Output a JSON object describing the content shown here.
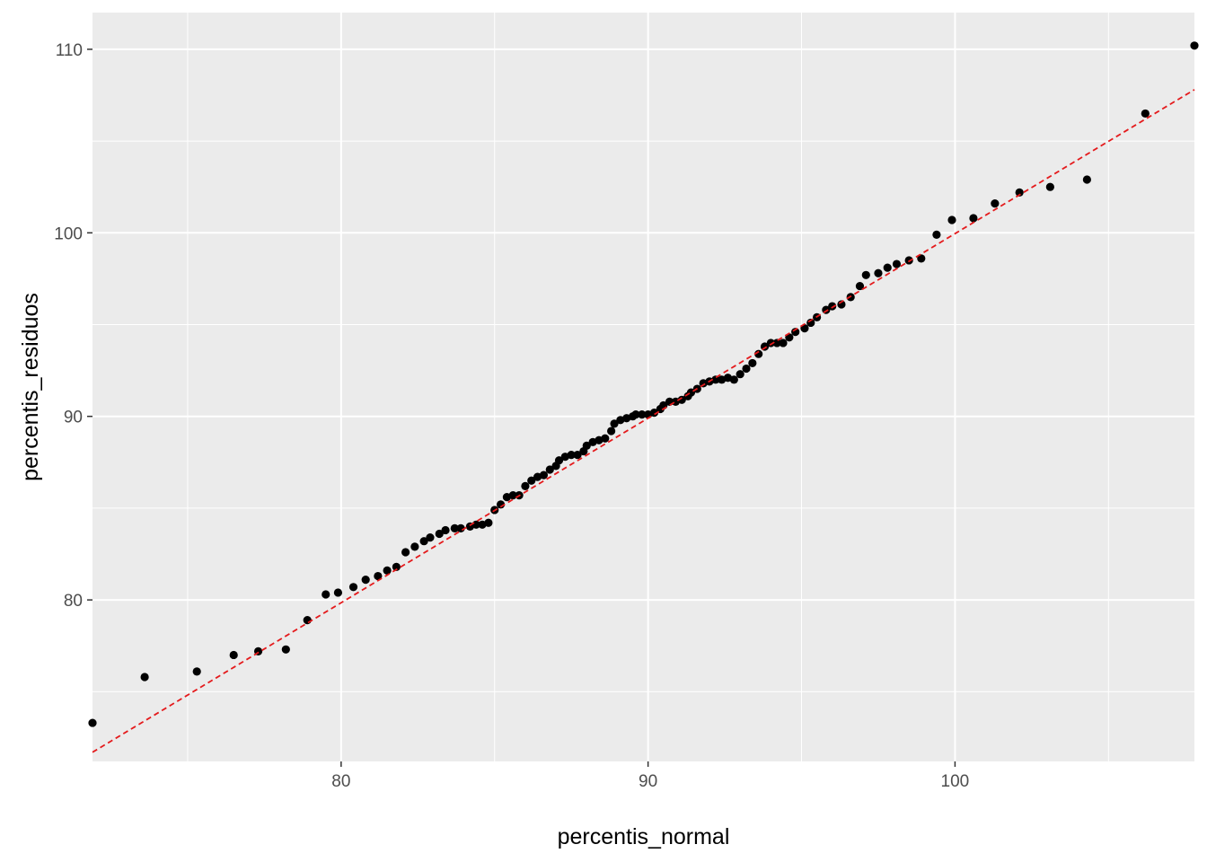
{
  "chart_data": {
    "type": "scatter",
    "title": "",
    "xlabel": "percentis_normal",
    "ylabel": "percentis_residuos",
    "xlim": [
      71.9,
      107.8
    ],
    "ylim": [
      71.2,
      112.0
    ],
    "x_ticks": [
      80,
      90,
      100
    ],
    "y_ticks": [
      80,
      90,
      100,
      110
    ],
    "x_minor": [
      75,
      85,
      95,
      105
    ],
    "y_minor": [
      75,
      85,
      95,
      105
    ],
    "grid": true,
    "legend": "none",
    "colors": {
      "panel": "#ebebeb",
      "grid": "#ffffff",
      "points": "#000000",
      "reference_line": "#e41a1c",
      "tick_text": "#4d4d4d",
      "tick_mark": "#333333"
    },
    "reference_line": {
      "style": "dashed",
      "points": [
        [
          71.9,
          71.7
        ],
        [
          107.8,
          107.8
        ]
      ]
    },
    "series": [
      {
        "points": [
          [
            71.9,
            73.3
          ],
          [
            73.6,
            75.8
          ],
          [
            75.3,
            76.1
          ],
          [
            76.5,
            77.0
          ],
          [
            77.3,
            77.2
          ],
          [
            78.2,
            77.3
          ],
          [
            78.9,
            78.9
          ],
          [
            79.5,
            80.3
          ],
          [
            79.9,
            80.4
          ],
          [
            80.4,
            80.7
          ],
          [
            80.8,
            81.1
          ],
          [
            81.2,
            81.3
          ],
          [
            81.5,
            81.6
          ],
          [
            81.8,
            81.8
          ],
          [
            82.1,
            82.6
          ],
          [
            82.4,
            82.9
          ],
          [
            82.7,
            83.2
          ],
          [
            82.9,
            83.4
          ],
          [
            83.2,
            83.6
          ],
          [
            83.4,
            83.8
          ],
          [
            83.7,
            83.9
          ],
          [
            83.9,
            83.9
          ],
          [
            84.2,
            84.0
          ],
          [
            84.4,
            84.1
          ],
          [
            84.6,
            84.1
          ],
          [
            84.8,
            84.2
          ],
          [
            85.0,
            84.9
          ],
          [
            85.2,
            85.2
          ],
          [
            85.4,
            85.6
          ],
          [
            85.6,
            85.7
          ],
          [
            85.8,
            85.7
          ],
          [
            86.0,
            86.2
          ],
          [
            86.2,
            86.5
          ],
          [
            86.4,
            86.7
          ],
          [
            86.6,
            86.8
          ],
          [
            86.8,
            87.1
          ],
          [
            87.0,
            87.3
          ],
          [
            87.1,
            87.6
          ],
          [
            87.3,
            87.8
          ],
          [
            87.5,
            87.9
          ],
          [
            87.7,
            87.9
          ],
          [
            87.9,
            88.1
          ],
          [
            88.0,
            88.4
          ],
          [
            88.2,
            88.6
          ],
          [
            88.4,
            88.7
          ],
          [
            88.6,
            88.8
          ],
          [
            88.8,
            89.2
          ],
          [
            88.9,
            89.6
          ],
          [
            89.1,
            89.8
          ],
          [
            89.3,
            89.9
          ],
          [
            89.5,
            90.0
          ],
          [
            89.6,
            90.1
          ],
          [
            89.8,
            90.1
          ],
          [
            90.0,
            90.1
          ],
          [
            90.2,
            90.2
          ],
          [
            90.4,
            90.4
          ],
          [
            90.5,
            90.6
          ],
          [
            90.7,
            90.8
          ],
          [
            90.9,
            90.8
          ],
          [
            91.1,
            90.9
          ],
          [
            91.3,
            91.1
          ],
          [
            91.4,
            91.3
          ],
          [
            91.6,
            91.5
          ],
          [
            91.8,
            91.8
          ],
          [
            92.0,
            91.9
          ],
          [
            92.2,
            92.0
          ],
          [
            92.4,
            92.0
          ],
          [
            92.6,
            92.1
          ],
          [
            92.8,
            92.0
          ],
          [
            93.0,
            92.3
          ],
          [
            93.2,
            92.6
          ],
          [
            93.4,
            92.9
          ],
          [
            93.6,
            93.4
          ],
          [
            93.8,
            93.8
          ],
          [
            94.0,
            94.0
          ],
          [
            94.2,
            94.0
          ],
          [
            94.4,
            94.0
          ],
          [
            94.6,
            94.3
          ],
          [
            94.8,
            94.6
          ],
          [
            95.1,
            94.8
          ],
          [
            95.3,
            95.1
          ],
          [
            95.5,
            95.4
          ],
          [
            95.8,
            95.8
          ],
          [
            96.0,
            96.0
          ],
          [
            96.3,
            96.1
          ],
          [
            96.6,
            96.5
          ],
          [
            96.9,
            97.1
          ],
          [
            97.1,
            97.7
          ],
          [
            97.5,
            97.8
          ],
          [
            97.8,
            98.1
          ],
          [
            98.1,
            98.3
          ],
          [
            98.5,
            98.5
          ],
          [
            98.9,
            98.6
          ],
          [
            99.4,
            99.9
          ],
          [
            99.9,
            100.7
          ],
          [
            100.6,
            100.8
          ],
          [
            101.3,
            101.6
          ],
          [
            102.1,
            102.2
          ],
          [
            103.1,
            102.5
          ],
          [
            104.3,
            102.9
          ],
          [
            106.2,
            106.5
          ],
          [
            107.8,
            110.2
          ]
        ]
      }
    ]
  }
}
